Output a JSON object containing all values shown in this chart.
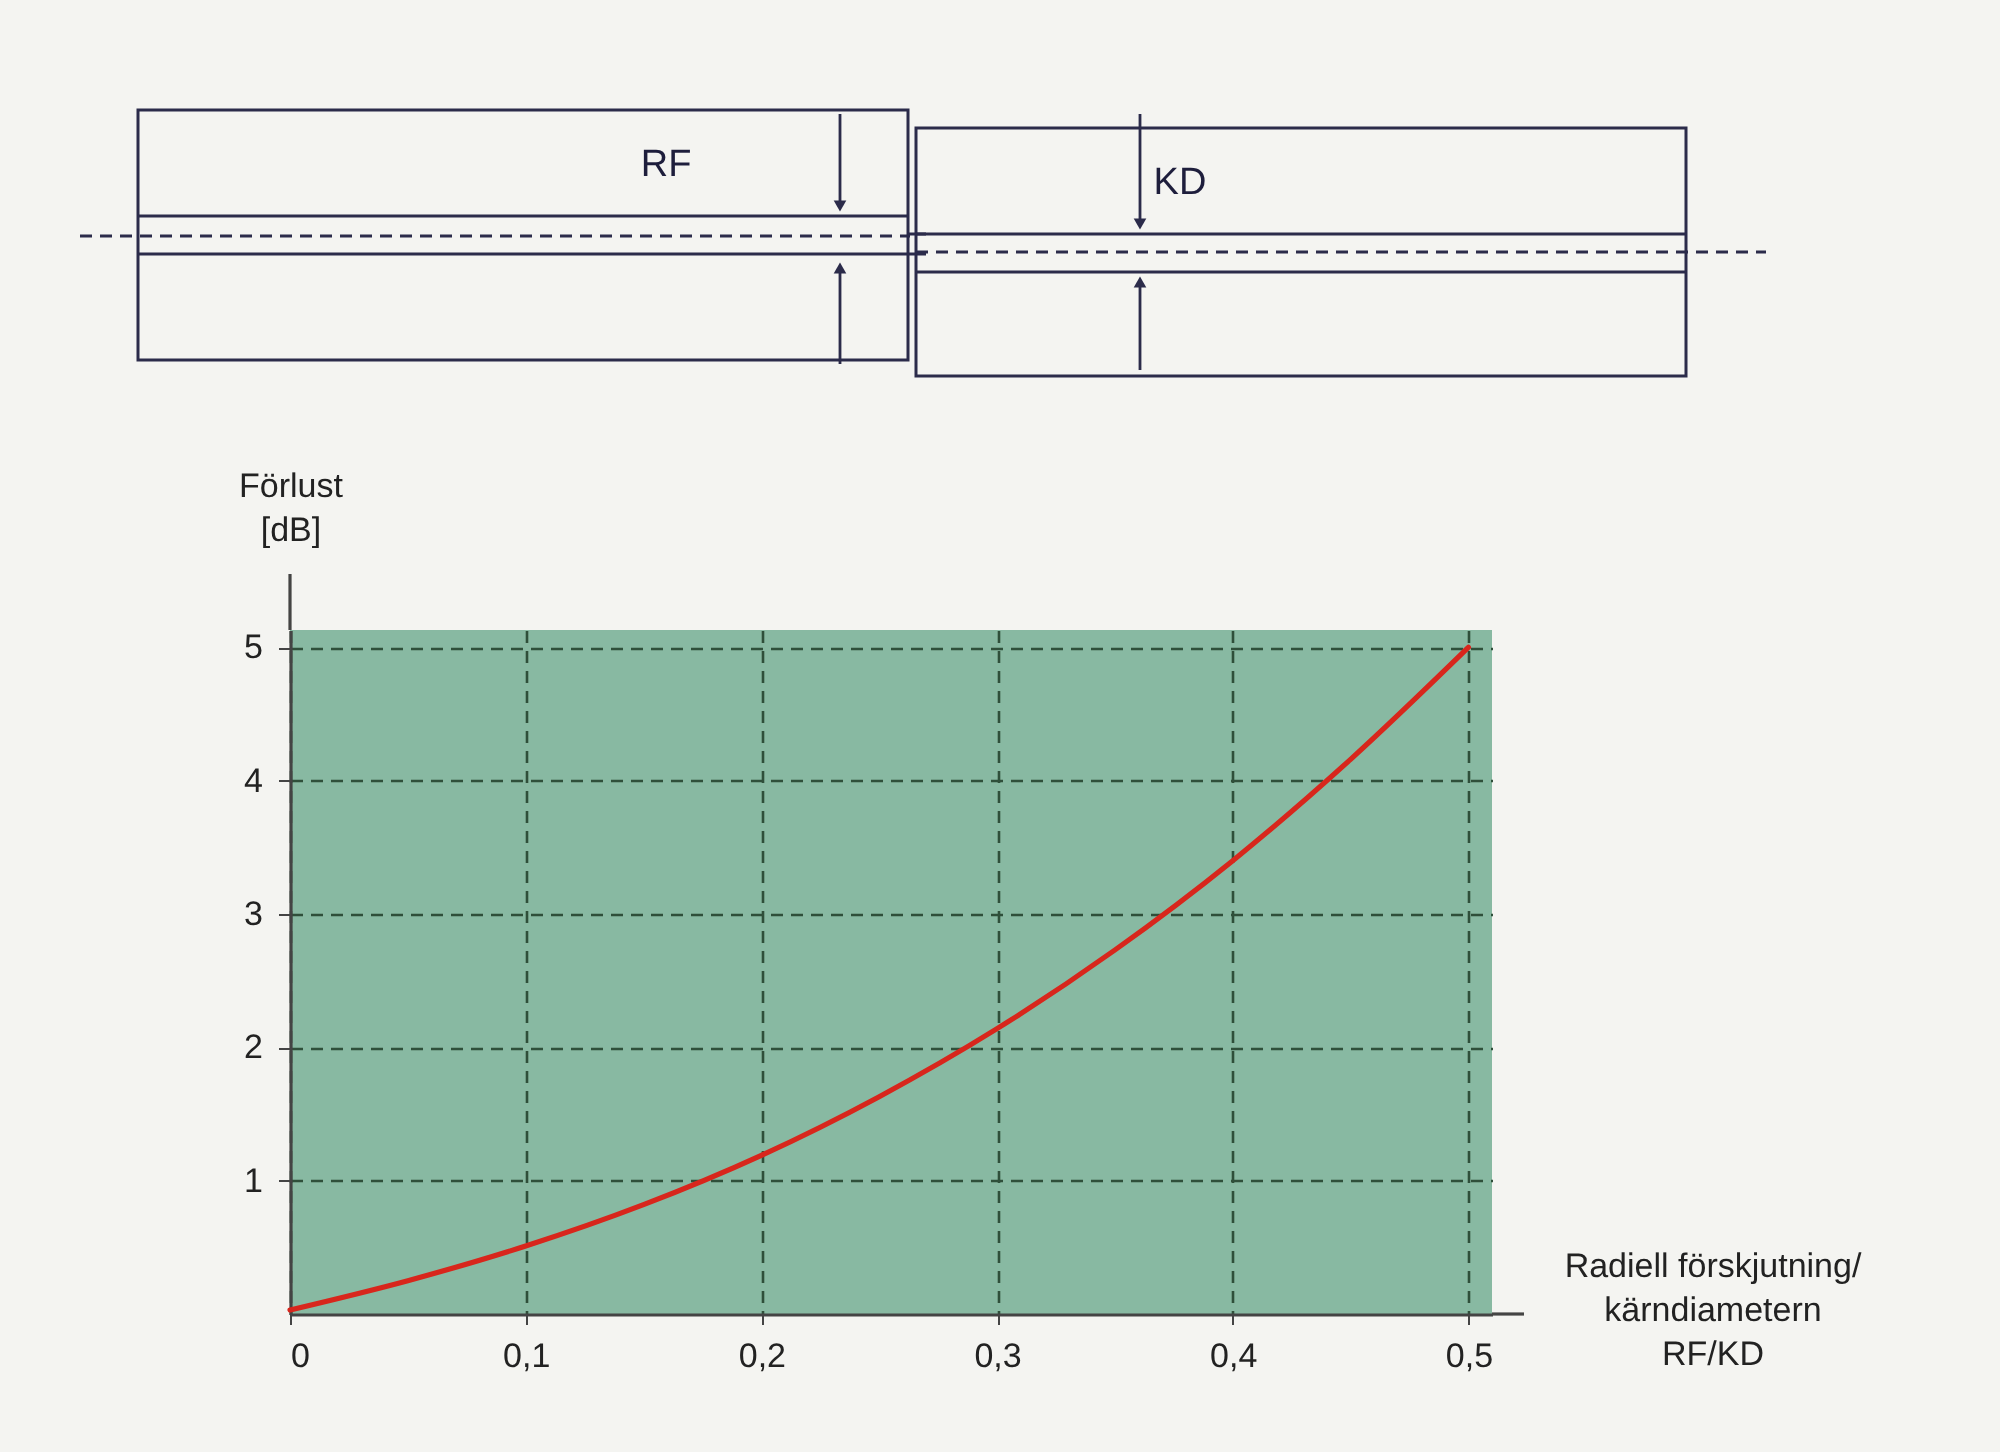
{
  "chart_data": {
    "type": "line",
    "xlabel": "Radiell förskjutning/\nkärndiametern\nRF/KD",
    "ylabel": "Förlust\n[dB]",
    "annotations": [
      "RF",
      "KD"
    ],
    "x": [
      0,
      0.05,
      0.1,
      0.15,
      0.2,
      0.25,
      0.3,
      0.35,
      0.4,
      0.45,
      0.5
    ],
    "series": [
      {
        "color": "#d8261c",
        "values": [
          0.03,
          0.25,
          0.51,
          0.82,
          1.19,
          1.63,
          2.14,
          2.73,
          3.4,
          4.16,
          5
        ]
      }
    ],
    "xlim": [
      0,
      0.51
    ],
    "ylim": [
      0,
      5.13
    ],
    "xticks": [
      0,
      {
        "value": 0.1,
        "label": "0,1"
      },
      {
        "value": 0.2,
        "label": "0,2"
      },
      {
        "value": 0.3,
        "label": "0,3"
      },
      {
        "value": 0.4,
        "label": "0,4"
      },
      {
        "value": 0.5,
        "label": "0,5"
      }
    ],
    "yticks": [
      1,
      2,
      3,
      4,
      5
    ],
    "grid": true
  }
}
